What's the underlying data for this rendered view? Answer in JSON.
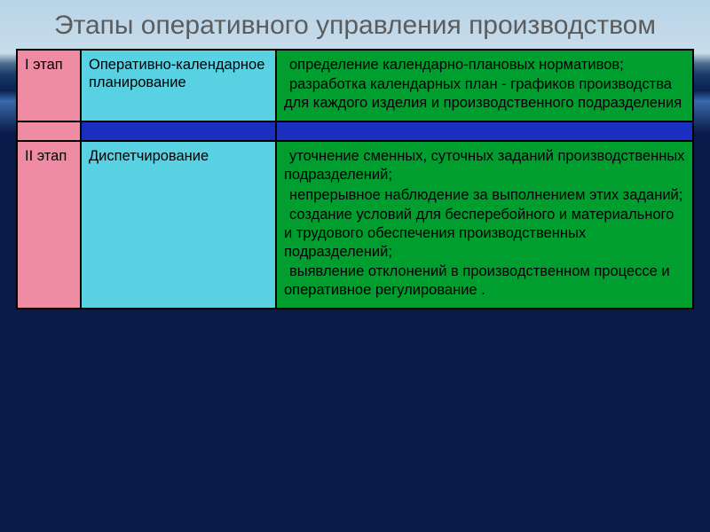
{
  "title": "Этапы оперативного управления производством",
  "colors": {
    "stage_bg": "#ef8ca4",
    "name_bg": "#58d2e2",
    "desc_bg": "#009e2f",
    "spacer_bg": "#1a2fc0",
    "border": "#000000",
    "title_color": "#5c5c5c"
  },
  "cols": {
    "stage_w": 72,
    "name_w": 220
  },
  "rows": [
    {
      "stage": "I этап",
      "name": "Оперативно-календарное планирование",
      "desc": [
        "определение календарно-плановых нормативов;",
        "разработка календарных план - графиков производства для каждого изделия и производственного подразделения"
      ]
    },
    {
      "stage": "II этап",
      "name": "Диспетчирование",
      "desc": [
        "уточнение сменных, суточных заданий производственных подразделений;",
        "непрерывное наблюдение за выполнением этих заданий;",
        "создание условий для бесперебойного и материального и трудового обеспечения производственных подразделений;",
        "выявление отклонений в производственном процессе и оперативное регулирование ."
      ]
    }
  ]
}
